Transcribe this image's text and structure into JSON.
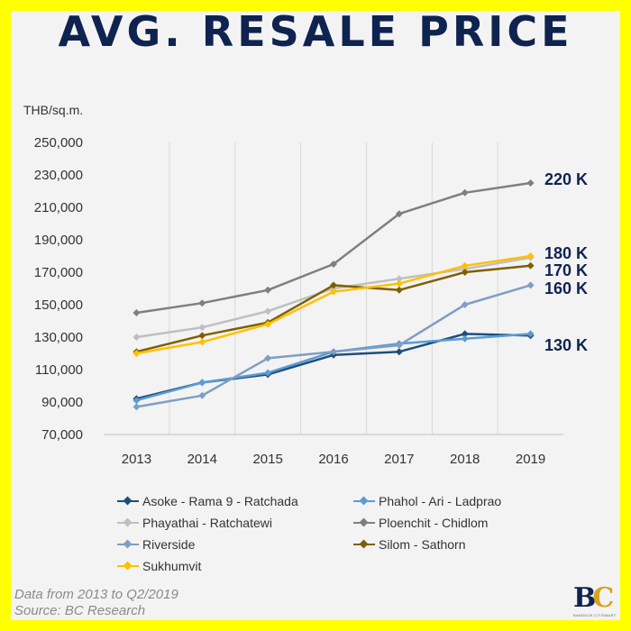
{
  "header": {
    "title": "AVG. RESALE PRICE"
  },
  "chart_data": {
    "type": "line",
    "title": "AVG. RESALE PRICE",
    "ylabel": "THB/sq.m.",
    "xlabel": "",
    "categories": [
      "2013",
      "2014",
      "2015",
      "2016",
      "2017",
      "2018",
      "2019"
    ],
    "ylim": [
      70000,
      250000
    ],
    "yticks": [
      70000,
      90000,
      110000,
      130000,
      150000,
      170000,
      190000,
      210000,
      230000,
      250000
    ],
    "ytick_labels": [
      "70,000",
      "90,000",
      "110,000",
      "130,000",
      "150,000",
      "170,000",
      "190,000",
      "210,000",
      "230,000",
      "250,000"
    ],
    "series": [
      {
        "name": "Asoke - Rama 9 - Ratchada",
        "color": "#1f4e79",
        "values": [
          92000,
          102000,
          107000,
          119000,
          121000,
          132000,
          131000
        ]
      },
      {
        "name": "Phahol - Ari - Ladprao",
        "color": "#5b9bd5",
        "values": [
          91000,
          102000,
          108000,
          121000,
          126000,
          129000,
          132000
        ]
      },
      {
        "name": "Phayathai - Ratchatewi",
        "color": "#bfbfbf",
        "values": [
          130000,
          136000,
          146000,
          160000,
          166000,
          172000,
          179000
        ]
      },
      {
        "name": "Ploenchit - Chidlom",
        "color": "#7f7f7f",
        "values": [
          145000,
          151000,
          159000,
          175000,
          206000,
          219000,
          225000
        ]
      },
      {
        "name": "Riverside",
        "color": "#7f9ec4",
        "values": [
          87000,
          94000,
          117000,
          121000,
          125000,
          150000,
          162000
        ]
      },
      {
        "name": "Silom - Sathorn",
        "color": "#7f6000",
        "values": [
          121000,
          131000,
          139000,
          162000,
          159000,
          170000,
          174000
        ]
      },
      {
        "name": "Sukhumvit",
        "color": "#ffc000",
        "values": [
          120000,
          127000,
          138000,
          158000,
          163000,
          174000,
          180000
        ]
      }
    ],
    "annotations": [
      {
        "text": "220 K",
        "value": 220000
      },
      {
        "text": "180 K",
        "value": 180000
      },
      {
        "text": "170 K",
        "value": 170000
      },
      {
        "text": "160 K",
        "value": 160000
      },
      {
        "text": "130 K",
        "value": 130000
      }
    ],
    "grid": true
  },
  "footer": {
    "line1": "Data from 2013 to Q2/2019",
    "line2": "Source: BC Research"
  },
  "logo": {
    "text": "BANGKOK CITISMART"
  },
  "colors": {
    "background": "#ffff00",
    "panel": "#f3f3f3",
    "title": "#0f2350",
    "annotation": "#0f2350"
  }
}
